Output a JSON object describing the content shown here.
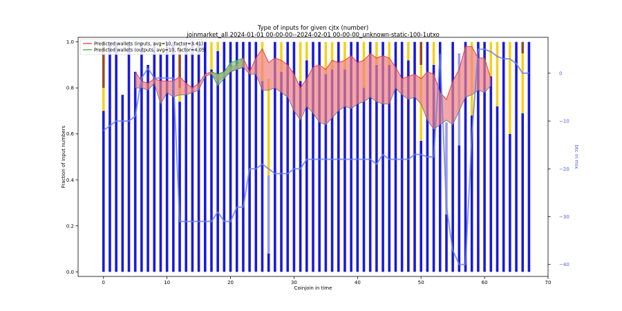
{
  "chart_data": {
    "type": "bar",
    "title": "Type of inputs for given cjtx (number)",
    "subtitle": "joinmarket_all 2024-01-01 00-00-00--2024-02-01 00-00-00_unknown-static-100-1utxo",
    "xlabel": "Coinjoin in time",
    "ylabel": "Fraction of input numbers",
    "y2label": "btc in mix",
    "xlim": [
      -4,
      70
    ],
    "ylim": [
      -0.02,
      1.02
    ],
    "y2lim": [
      -42.5,
      7.5
    ],
    "xticks": [
      0,
      10,
      20,
      30,
      40,
      50,
      60,
      70
    ],
    "yticks": [
      0.0,
      0.2,
      0.4,
      0.6,
      0.8,
      1.0
    ],
    "y2ticks": [
      0,
      -10,
      -20,
      -30,
      -40
    ],
    "grid": false,
    "legend_position": "top-left",
    "colors": {
      "fresh_inputs": "#1a1adb",
      "remixed_inputs": "#9a9af0",
      "yellow_inputs": "#f5d020",
      "brown_inputs": "#9a4a22",
      "inputs_wallet_line": "#e03030",
      "inputs_wallet_fill": "#f08080",
      "outputs_wallet_line": "#2ca02c",
      "outputs_wallet_fill": "#7cc47c",
      "btc_line": "#6a7fe6"
    },
    "legend": [
      {
        "label": "Predicted wallets (inputs, avg=10, factor=3.41)",
        "color": "#e03030"
      },
      {
        "label": "Predicted wallets (outputs, avg=10, factor=4.05)",
        "color": "#2ca02c"
      }
    ],
    "bars": {
      "x": [
        0,
        1,
        2,
        3,
        4,
        5,
        6,
        7,
        8,
        9,
        10,
        11,
        12,
        13,
        14,
        15,
        16,
        17,
        18,
        19,
        20,
        21,
        22,
        23,
        24,
        25,
        26,
        27,
        28,
        29,
        30,
        31,
        32,
        33,
        34,
        35,
        36,
        37,
        38,
        39,
        40,
        41,
        42,
        43,
        44,
        45,
        46,
        47,
        48,
        49,
        50,
        51,
        52,
        53,
        54,
        55,
        56,
        57,
        58,
        59,
        60,
        61,
        62,
        63,
        64,
        65,
        66,
        67
      ],
      "fresh": [
        0.7,
        1.0,
        1.0,
        0.77,
        1.0,
        0.87,
        1.0,
        0.9,
        1.0,
        0.95,
        1.0,
        1.0,
        0.74,
        1.0,
        1.0,
        1.0,
        1.0,
        0.88,
        0.96,
        1.0,
        1.0,
        1.0,
        1.0,
        1.0,
        1.0,
        0.83,
        0.08,
        1.0,
        0.87,
        1.0,
        1.0,
        0.83,
        0.92,
        1.0,
        1.0,
        0.86,
        0.88,
        1.0,
        0.88,
        1.0,
        1.0,
        0.8,
        1.0,
        0.9,
        1.0,
        0.9,
        1.0,
        1.0,
        0.92,
        1.0,
        0.57,
        1.0,
        0.9,
        1.0,
        0.25,
        1.0,
        0.55,
        1.0,
        0.68,
        1.0,
        1.0,
        0.85,
        0.72,
        1.0,
        0.6,
        1.0,
        0.69,
        1.0
      ],
      "remixed": [
        0.0,
        0.0,
        0.0,
        0.0,
        0.0,
        0.0,
        0.0,
        0.0,
        0.0,
        0.0,
        0.0,
        0.0,
        0.0,
        0.0,
        0.0,
        0.0,
        0.0,
        0.0,
        0.0,
        0.0,
        0.0,
        0.0,
        0.0,
        0.0,
        0.0,
        0.0,
        0.34,
        0.0,
        0.0,
        0.0,
        0.0,
        0.0,
        0.0,
        0.0,
        0.0,
        0.0,
        0.0,
        0.0,
        0.0,
        0.0,
        0.0,
        0.0,
        0.0,
        0.0,
        0.0,
        0.0,
        0.0,
        0.0,
        0.0,
        0.0,
        0.0,
        0.0,
        0.0,
        0.0,
        0.4,
        0.0,
        0.4,
        0.0,
        0.0,
        0.0,
        0.0,
        0.0,
        0.0,
        0.0,
        0.0,
        0.0,
        0.0,
        0.0
      ],
      "yellow": [
        0.1,
        0.0,
        0.0,
        0.0,
        0.0,
        0.0,
        0.0,
        0.0,
        0.0,
        0.05,
        0.0,
        0.0,
        0.06,
        0.0,
        0.0,
        0.0,
        0.0,
        0.12,
        0.04,
        0.0,
        0.0,
        0.0,
        0.0,
        0.0,
        0.0,
        0.17,
        0.42,
        0.0,
        0.13,
        0.0,
        0.0,
        0.17,
        0.08,
        0.0,
        0.0,
        0.14,
        0.12,
        0.0,
        0.12,
        0.0,
        0.0,
        0.2,
        0.0,
        0.1,
        0.0,
        0.1,
        0.0,
        0.0,
        0.08,
        0.0,
        0.33,
        0.0,
        0.1,
        0.0,
        0.0,
        0.0,
        0.0,
        0.0,
        0.32,
        0.0,
        0.0,
        0.15,
        0.28,
        0.0,
        0.4,
        0.0,
        0.26,
        0.0
      ],
      "brown": [
        0.2,
        0.0,
        0.0,
        0.0,
        0.0,
        0.0,
        0.0,
        0.0,
        0.0,
        0.0,
        0.0,
        0.0,
        0.2,
        0.0,
        0.0,
        0.0,
        0.0,
        0.0,
        0.0,
        0.0,
        0.0,
        0.0,
        0.0,
        0.0,
        0.0,
        0.0,
        0.0,
        0.0,
        0.0,
        0.0,
        0.0,
        0.0,
        0.0,
        0.0,
        0.0,
        0.0,
        0.0,
        0.0,
        0.0,
        0.0,
        0.0,
        0.0,
        0.0,
        0.0,
        0.0,
        0.0,
        0.0,
        0.0,
        0.0,
        0.0,
        0.1,
        0.0,
        0.0,
        0.0,
        0.0,
        0.0,
        0.0,
        0.0,
        0.0,
        0.0,
        0.0,
        0.0,
        0.0,
        0.0,
        0.0,
        0.0,
        0.05,
        0.0
      ]
    },
    "series": [
      {
        "name": "Predicted wallets (inputs, avg=10, factor=3.41)",
        "x": [
          5,
          6,
          7,
          8,
          9,
          10,
          11,
          12,
          13,
          14,
          15,
          16,
          17,
          18,
          19,
          20,
          21,
          22,
          23,
          24,
          25,
          26,
          27,
          28,
          29,
          30,
          31,
          32,
          33,
          34,
          35,
          36,
          37,
          38,
          39,
          40,
          41,
          42,
          43,
          44,
          45,
          46,
          47,
          48,
          49,
          50,
          51,
          52,
          53,
          54,
          55,
          56,
          57,
          58,
          59,
          60,
          61
        ],
        "upper": [
          0.87,
          0.83,
          0.82,
          0.84,
          0.83,
          0.83,
          0.83,
          0.85,
          0.82,
          0.8,
          0.82,
          0.86,
          0.87,
          0.86,
          0.87,
          0.89,
          0.9,
          0.93,
          0.87,
          0.93,
          0.97,
          0.91,
          0.93,
          0.92,
          0.9,
          0.86,
          0.8,
          0.84,
          0.89,
          0.9,
          0.88,
          0.92,
          0.91,
          0.92,
          0.94,
          0.91,
          0.92,
          0.95,
          0.93,
          0.94,
          0.93,
          0.89,
          0.84,
          0.85,
          0.86,
          0.84,
          0.87,
          0.86,
          0.78,
          0.75,
          0.83,
          0.88,
          0.98,
          0.98,
          0.93,
          0.93,
          0.84
        ],
        "lower": [
          0.8,
          0.8,
          0.79,
          0.82,
          0.73,
          0.78,
          0.76,
          0.77,
          0.77,
          0.78,
          0.79,
          0.85,
          0.86,
          0.83,
          0.85,
          0.87,
          0.88,
          0.89,
          0.86,
          0.86,
          0.79,
          0.79,
          0.8,
          0.78,
          0.76,
          0.7,
          0.66,
          0.72,
          0.69,
          0.65,
          0.64,
          0.67,
          0.7,
          0.72,
          0.71,
          0.73,
          0.74,
          0.76,
          0.74,
          0.73,
          0.73,
          0.8,
          0.77,
          0.75,
          0.76,
          0.73,
          0.66,
          0.62,
          0.64,
          0.66,
          0.64,
          0.7,
          0.76,
          0.77,
          0.79,
          0.78,
          0.81
        ]
      },
      {
        "name": "Predicted wallets (outputs, avg=10, factor=4.05)",
        "x": [
          17,
          18,
          19,
          20,
          21,
          22
        ],
        "upper": [
          0.87,
          0.86,
          0.87,
          0.91,
          0.92,
          0.93
        ],
        "lower": [
          0.86,
          0.81,
          0.84,
          0.87,
          0.88,
          0.89
        ]
      },
      {
        "name": "btc in mix",
        "axis": "right",
        "x": [
          0,
          1,
          2,
          3,
          4,
          5,
          6,
          7,
          8,
          9,
          10,
          11,
          12,
          13,
          14,
          15,
          16,
          17,
          18,
          19,
          20,
          21,
          22,
          23,
          24,
          25,
          26,
          27,
          28,
          29,
          30,
          31,
          32,
          33,
          34,
          35,
          36,
          37,
          38,
          39,
          40,
          41,
          42,
          43,
          44,
          45,
          46,
          47,
          48,
          49,
          50,
          51,
          52,
          53,
          54,
          55,
          56,
          57,
          58,
          59,
          60,
          61,
          62,
          63,
          64,
          65,
          66,
          67
        ],
        "values": [
          -12,
          -11,
          -10,
          -10,
          -10,
          -9,
          -1,
          1,
          -1,
          -1,
          -1,
          -1,
          -31,
          -31,
          -31,
          -31,
          -31,
          -31,
          -29,
          -31,
          -31,
          -28,
          -28,
          -20,
          -20,
          -19,
          -20,
          -21,
          -21,
          -21,
          -20,
          -20,
          -18,
          -18,
          -18,
          -18,
          -18,
          -18,
          -18,
          -18,
          -18,
          -18,
          -18,
          -19,
          -17,
          -18,
          -18,
          -18,
          -18,
          -17,
          -17,
          -17.5,
          -17.5,
          4,
          -28,
          -37,
          -40,
          -40,
          -13,
          5,
          5,
          4.5,
          3.5,
          3,
          3,
          2,
          0,
          0
        ]
      }
    ]
  }
}
